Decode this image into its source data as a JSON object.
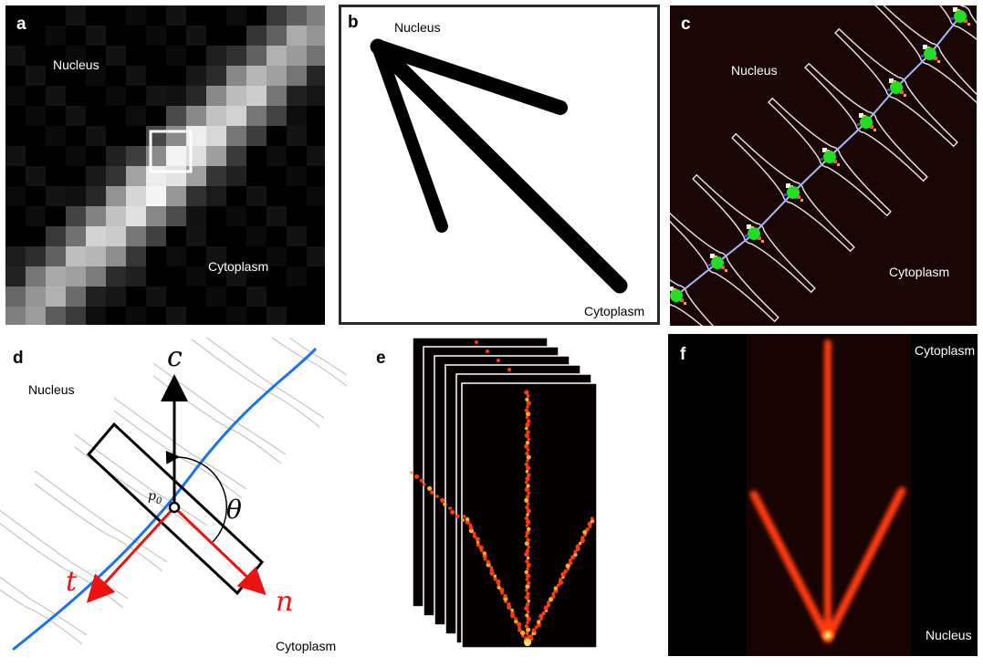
{
  "panels": {
    "a": {
      "label": "a",
      "nucleus": "Nucleus",
      "cytoplasm": "Cytoplasm"
    },
    "b": {
      "label": "b",
      "nucleus": "Nucleus",
      "cytoplasm": "Cytoplasm"
    },
    "c": {
      "label": "c",
      "nucleus": "Nucleus",
      "cytoplasm": "Cytoplasm"
    },
    "d": {
      "label": "d",
      "nucleus": "Nucleus",
      "cytoplasm": "Cytoplasm",
      "axis_c": "c",
      "axis_t": "t",
      "axis_n": "n",
      "point": "p",
      "point_sub": "0",
      "angle": "θ"
    },
    "e": {
      "label": "e"
    },
    "f": {
      "label": "f",
      "cytoplasm": "Cytoplasm",
      "nucleus": "Nucleus"
    }
  },
  "colors": {
    "spindle_red": "#ff3a10",
    "fiber_blue": "#1a73e8",
    "node_green": "#22dd22",
    "vector_red": "#ee1111"
  }
}
